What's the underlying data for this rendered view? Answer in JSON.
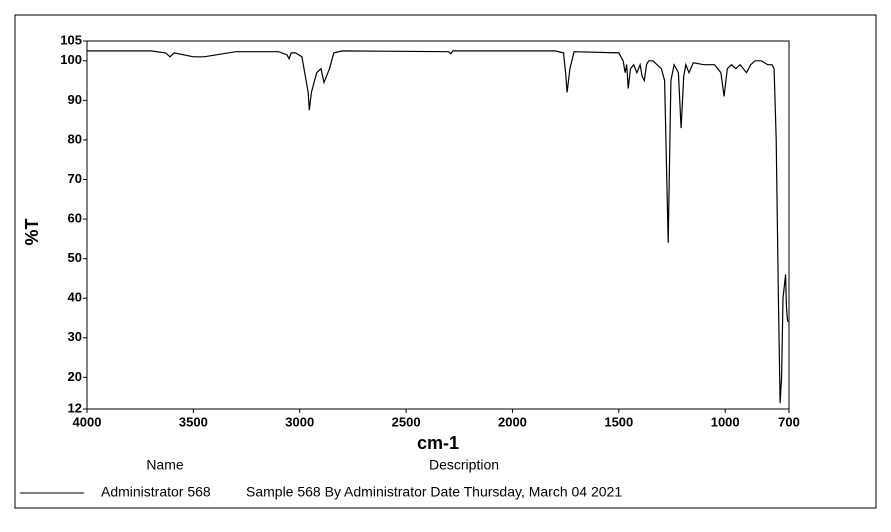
{
  "chart_data": {
    "type": "line",
    "xlabel": "cm-1",
    "ylabel": "%T",
    "xlim": [
      4000,
      700
    ],
    "ylim": [
      12,
      105
    ],
    "xticks": [
      4000,
      3500,
      3000,
      2500,
      2000,
      1500,
      1000,
      700
    ],
    "yticks": [
      12,
      20,
      30,
      40,
      50,
      60,
      70,
      80,
      90,
      100,
      105
    ],
    "legend_headers": [
      "Name",
      "Description"
    ],
    "series": [
      {
        "name": "Administrator 568",
        "description": "Sample 568 By Administrator Date Thursday, March 04 2021",
        "color": "#000000",
        "x": [
          4000,
          3700,
          3630,
          3610,
          3590,
          3500,
          3450,
          3300,
          3100,
          3060,
          3050,
          3040,
          3020,
          2990,
          2960,
          2955,
          2945,
          2920,
          2900,
          2886,
          2860,
          2840,
          2800,
          2300,
          2290,
          2280,
          1800,
          1760,
          1750,
          1743,
          1730,
          1710,
          1500,
          1480,
          1470,
          1463,
          1456,
          1445,
          1430,
          1415,
          1400,
          1390,
          1380,
          1370,
          1360,
          1340,
          1300,
          1285,
          1268,
          1255,
          1240,
          1220,
          1207,
          1195,
          1185,
          1170,
          1150,
          1100,
          1050,
          1020,
          1005,
          990,
          970,
          950,
          930,
          900,
          880,
          860,
          830,
          800,
          780,
          770,
          760,
          750,
          742,
          735,
          728,
          716,
          712,
          708,
          705
        ],
        "values": [
          102.5,
          102.5,
          102,
          101,
          102,
          101,
          101,
          102.3,
          102.3,
          101.5,
          100.5,
          102,
          102,
          101,
          92,
          87.5,
          92,
          97,
          98,
          94.5,
          98,
          102,
          102.5,
          102.3,
          101.8,
          102.5,
          102.5,
          102,
          97,
          92,
          98,
          102.3,
          102,
          100,
          97,
          99,
          93,
          98,
          99,
          97,
          99,
          96,
          95,
          99,
          100,
          100,
          98,
          95,
          54,
          95,
          99,
          97,
          83,
          96,
          99,
          97,
          99.5,
          99,
          99,
          97,
          91,
          98,
          99,
          98,
          99,
          97,
          99,
          100,
          100,
          99,
          99,
          98,
          80,
          40,
          13.5,
          20,
          40,
          46,
          38,
          35,
          34
        ]
      }
    ]
  }
}
